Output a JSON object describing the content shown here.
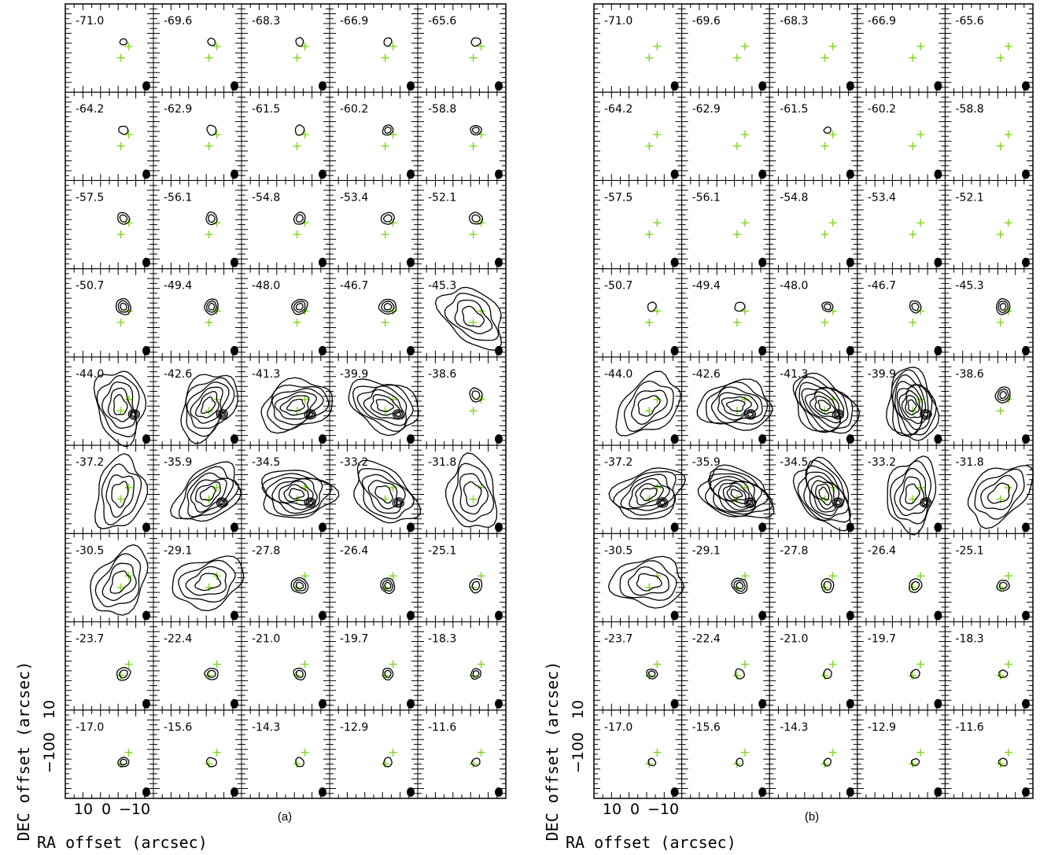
{
  "chart_data": {
    "type": "contour",
    "figure_label": "channel maps",
    "grid": {
      "rows": 9,
      "cols": 5
    },
    "velocities": [
      "-71.0",
      "-69.6",
      "-68.3",
      "-66.9",
      "-65.6",
      "-64.2",
      "-62.9",
      "-61.5",
      "-60.2",
      "-58.8",
      "-57.5",
      "-56.1",
      "-54.8",
      "-53.4",
      "-52.1",
      "-50.7",
      "-49.4",
      "-48.0",
      "-46.7",
      "-45.3",
      "-44.0",
      "-42.6",
      "-41.3",
      "-39.9",
      "-38.6",
      "-37.2",
      "-35.9",
      "-34.5",
      "-33.2",
      "-31.8",
      "-30.5",
      "-29.1",
      "-27.8",
      "-26.4",
      "-25.1",
      "-23.7",
      "-22.4",
      "-21.0",
      "-19.7",
      "-18.3",
      "-17.0",
      "-15.6",
      "-14.3",
      "-12.9",
      "-11.6"
    ],
    "xlabel": "RA offset (arcsec)",
    "ylabel": "DEC offset (arcsec)",
    "xtick_labels": [
      "10",
      "0",
      "−10"
    ],
    "ytick_labels": [
      "−10",
      "0",
      "10"
    ],
    "marker_color": "#7cd61c",
    "contour_color": "#000000",
    "panels": [
      {
        "label": "(a)",
        "intensity": [
          0.3,
          0.4,
          0.5,
          0.5,
          0.6,
          0.6,
          0.7,
          0.7,
          0.8,
          0.8,
          1.0,
          1.0,
          1.0,
          1.1,
          1.1,
          1.5,
          1.4,
          1.5,
          1.6,
          1.8,
          2.5,
          3.0,
          3.0,
          3.2,
          1.2,
          2.2,
          3.0,
          3.3,
          2.5,
          2.2,
          2.2,
          1.8,
          1.6,
          1.4,
          1.2,
          1.2,
          1.1,
          1.0,
          0.9,
          0.8,
          0.8,
          0.7,
          0.6,
          0.6,
          0.5
        ]
      },
      {
        "label": "(b)",
        "intensity": [
          0,
          0,
          0,
          0,
          0,
          0,
          0,
          0.3,
          0,
          0,
          0,
          0,
          0,
          0,
          0,
          0.6,
          0.7,
          0.8,
          1.0,
          1.4,
          2.2,
          3.2,
          4.2,
          4.5,
          1.5,
          3.0,
          4.3,
          3.8,
          2.4,
          2.0,
          1.8,
          1.5,
          1.2,
          1.2,
          1.0,
          0.8,
          0.7,
          0.6,
          0.6,
          0.5,
          0.4,
          0.4,
          0.4,
          0.4,
          0.5
        ]
      }
    ]
  }
}
